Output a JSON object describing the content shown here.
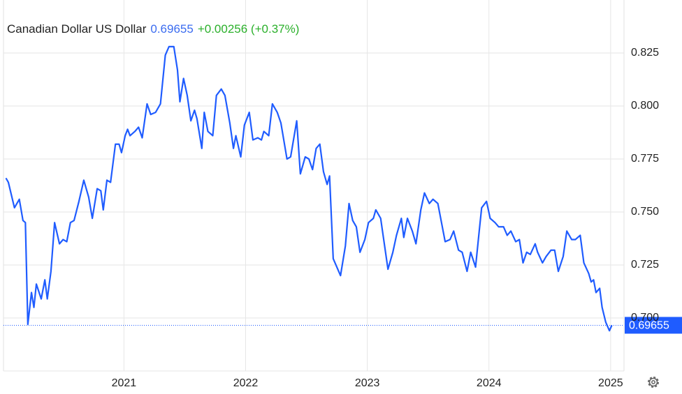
{
  "chart_data": {
    "type": "line",
    "title": "Canadian Dollar US Dollar",
    "last_price": 0.69655,
    "change": "+0.00256 (+0.37%)",
    "color": "#1f5cff",
    "grid": true,
    "xlim": [
      2020.01,
      2025.11
    ],
    "xticks": [
      2021,
      2022,
      2023,
      2024,
      2025
    ],
    "ylim": [
      0.675,
      0.85
    ],
    "yticks": [
      {
        "value": 0.7,
        "label": "0.700"
      },
      0.725,
      {
        "value": 0.75,
        "label": "0.750"
      },
      0.775,
      {
        "value": 0.8,
        "label": "0.800"
      },
      0.825
    ],
    "x": [
      2020.03,
      2020.05,
      2020.1,
      2020.14,
      2020.17,
      2020.19,
      2020.21,
      2020.24,
      2020.26,
      2020.28,
      2020.32,
      2020.35,
      2020.37,
      2020.4,
      2020.43,
      2020.47,
      2020.5,
      2020.53,
      2020.56,
      2020.59,
      2020.63,
      2020.67,
      2020.71,
      2020.74,
      2020.78,
      2020.81,
      2020.83,
      2020.86,
      2020.89,
      2020.93,
      2020.96,
      2020.98,
      2021.01,
      2021.03,
      2021.05,
      2021.09,
      2021.12,
      2021.15,
      2021.19,
      2021.22,
      2021.26,
      2021.3,
      2021.34,
      2021.37,
      2021.41,
      2021.44,
      2021.46,
      2021.49,
      2021.52,
      2021.55,
      2021.58,
      2021.6,
      2021.64,
      2021.66,
      2021.69,
      2021.73,
      2021.76,
      2021.8,
      2021.83,
      2021.87,
      2021.9,
      2021.92,
      2021.96,
      2021.99,
      2022.03,
      2022.06,
      2022.1,
      2022.13,
      2022.15,
      2022.19,
      2022.22,
      2022.26,
      2022.29,
      2022.34,
      2022.37,
      2022.42,
      2022.45,
      2022.49,
      2022.52,
      2022.55,
      2022.58,
      2022.61,
      2022.64,
      2022.67,
      2022.69,
      2022.72,
      2022.75,
      2022.78,
      2022.82,
      2022.85,
      2022.88,
      2022.91,
      2022.94,
      2022.98,
      2023.01,
      2023.05,
      2023.07,
      2023.11,
      2023.14,
      2023.17,
      2023.21,
      2023.24,
      2023.28,
      2023.3,
      2023.33,
      2023.37,
      2023.4,
      2023.44,
      2023.47,
      2023.51,
      2023.54,
      2023.58,
      2023.61,
      2023.64,
      2023.68,
      2023.71,
      2023.75,
      2023.78,
      2023.82,
      2023.85,
      2023.89,
      2023.92,
      2023.94,
      2023.98,
      2024.01,
      2024.05,
      2024.08,
      2024.12,
      2024.15,
      2024.18,
      2024.22,
      2024.25,
      2024.28,
      2024.31,
      2024.34,
      2024.38,
      2024.4,
      2024.44,
      2024.47,
      2024.51,
      2024.54,
      2024.57,
      2024.61,
      2024.64,
      2024.68,
      2024.71,
      2024.75,
      2024.78,
      2024.82,
      2024.84,
      2024.86,
      2024.88,
      2024.91,
      2024.93,
      2024.96,
      2024.99,
      2025.01
    ],
    "values": [
      0.766,
      0.764,
      0.752,
      0.756,
      0.746,
      0.745,
      0.697,
      0.712,
      0.705,
      0.716,
      0.709,
      0.718,
      0.709,
      0.722,
      0.745,
      0.735,
      0.737,
      0.736,
      0.745,
      0.746,
      0.755,
      0.765,
      0.757,
      0.747,
      0.761,
      0.76,
      0.751,
      0.765,
      0.764,
      0.782,
      0.782,
      0.778,
      0.786,
      0.789,
      0.786,
      0.788,
      0.79,
      0.785,
      0.801,
      0.796,
      0.797,
      0.801,
      0.824,
      0.828,
      0.828,
      0.817,
      0.802,
      0.813,
      0.805,
      0.793,
      0.798,
      0.794,
      0.78,
      0.797,
      0.788,
      0.786,
      0.805,
      0.808,
      0.805,
      0.792,
      0.78,
      0.786,
      0.776,
      0.791,
      0.797,
      0.784,
      0.785,
      0.784,
      0.788,
      0.786,
      0.801,
      0.797,
      0.792,
      0.775,
      0.776,
      0.793,
      0.768,
      0.776,
      0.775,
      0.77,
      0.78,
      0.782,
      0.769,
      0.763,
      0.767,
      0.728,
      0.724,
      0.72,
      0.734,
      0.754,
      0.746,
      0.743,
      0.731,
      0.737,
      0.745,
      0.747,
      0.751,
      0.747,
      0.735,
      0.723,
      0.731,
      0.739,
      0.747,
      0.738,
      0.747,
      0.741,
      0.735,
      0.751,
      0.759,
      0.754,
      0.756,
      0.754,
      0.745,
      0.736,
      0.737,
      0.741,
      0.732,
      0.731,
      0.722,
      0.731,
      0.724,
      0.741,
      0.752,
      0.755,
      0.747,
      0.745,
      0.743,
      0.743,
      0.739,
      0.741,
      0.736,
      0.737,
      0.726,
      0.731,
      0.73,
      0.735,
      0.731,
      0.726,
      0.729,
      0.732,
      0.732,
      0.722,
      0.729,
      0.741,
      0.737,
      0.737,
      0.739,
      0.726,
      0.721,
      0.717,
      0.718,
      0.712,
      0.714,
      0.705,
      0.698,
      0.694,
      0.69655
    ]
  }
}
